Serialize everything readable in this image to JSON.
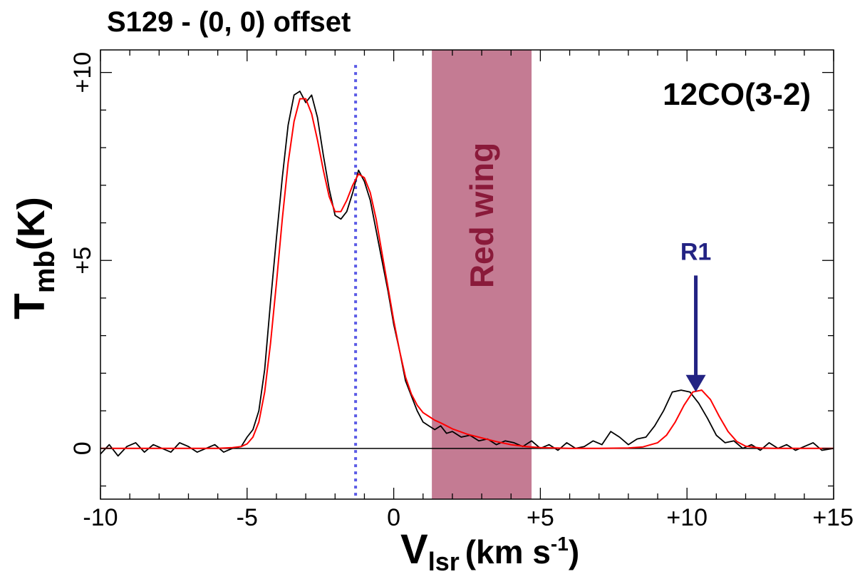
{
  "chart_data": {
    "type": "line",
    "title": "S129 - (0, 0) offset",
    "line_label": "12CO(3-2)",
    "xlabel": {
      "main": "V",
      "sub": "lsr",
      "unit_pre": "(km s",
      "unit_sup": "-1",
      "unit_post": ")"
    },
    "ylabel": {
      "main": "T",
      "sub": "mb",
      "unit": "(K)"
    },
    "xlim": [
      -10,
      15
    ],
    "ylim": [
      -1.35,
      10.6
    ],
    "x_ticks": [
      -10,
      -5,
      0,
      5,
      10,
      15
    ],
    "x_tick_labels": [
      "-10",
      "-5",
      "0",
      "+5",
      "+10",
      "+15"
    ],
    "y_ticks": [
      0,
      5,
      10
    ],
    "y_tick_labels": [
      "0",
      "+5",
      "+10"
    ],
    "zero_line": 0,
    "vertical_marker": {
      "x": -1.3,
      "style": "dotted",
      "color": "#5b5be6"
    },
    "band": {
      "x_range": [
        1.3,
        4.7
      ],
      "label": "Red wing",
      "color": "#c47b93",
      "label_color": "#8a1a3a"
    },
    "annotation": {
      "label": "R1",
      "x": 10.3,
      "y_tip": 1.5,
      "y_tail": 4.6,
      "color": "#232383"
    },
    "series": [
      {
        "kind": "observed",
        "color": "#000000",
        "x": [
          -10.0,
          -9.7,
          -9.4,
          -9.1,
          -8.8,
          -8.5,
          -8.2,
          -7.9,
          -7.6,
          -7.3,
          -7.0,
          -6.7,
          -6.4,
          -6.1,
          -5.8,
          -5.5,
          -5.2,
          -5.0,
          -4.8,
          -4.6,
          -4.4,
          -4.2,
          -4.0,
          -3.8,
          -3.6,
          -3.4,
          -3.2,
          -3.0,
          -2.8,
          -2.6,
          -2.4,
          -2.2,
          -2.0,
          -1.8,
          -1.6,
          -1.4,
          -1.2,
          -1.0,
          -0.8,
          -0.6,
          -0.4,
          -0.2,
          0.0,
          0.2,
          0.4,
          0.6,
          0.8,
          1.0,
          1.2,
          1.4,
          1.6,
          1.8,
          2.0,
          2.3,
          2.6,
          2.9,
          3.2,
          3.5,
          3.8,
          4.1,
          4.4,
          4.7,
          5.0,
          5.3,
          5.6,
          5.9,
          6.2,
          6.5,
          6.8,
          7.1,
          7.4,
          7.7,
          8.0,
          8.3,
          8.6,
          8.9,
          9.2,
          9.5,
          9.8,
          10.1,
          10.4,
          10.7,
          11.0,
          11.3,
          11.6,
          11.9,
          12.2,
          12.5,
          12.8,
          13.1,
          13.4,
          13.7,
          14.0,
          14.3,
          14.6,
          15.0
        ],
        "y": [
          -0.15,
          0.1,
          -0.2,
          0.05,
          0.15,
          -0.1,
          0.1,
          0.0,
          -0.1,
          0.15,
          0.05,
          -0.1,
          0.0,
          0.1,
          -0.1,
          0.0,
          0.05,
          0.3,
          0.5,
          1.0,
          2.1,
          3.9,
          5.6,
          7.2,
          8.6,
          9.4,
          9.5,
          9.2,
          9.4,
          8.8,
          7.8,
          6.9,
          6.2,
          6.1,
          6.3,
          6.8,
          7.4,
          7.1,
          6.6,
          5.8,
          5.0,
          4.2,
          3.3,
          2.6,
          1.8,
          1.4,
          1.0,
          0.7,
          0.6,
          0.5,
          0.6,
          0.4,
          0.45,
          0.3,
          0.35,
          0.2,
          0.25,
          0.1,
          0.2,
          0.15,
          0.05,
          0.2,
          0.0,
          0.1,
          -0.05,
          0.15,
          0.0,
          0.05,
          0.2,
          0.1,
          0.45,
          0.3,
          0.1,
          0.25,
          0.3,
          0.6,
          1.0,
          1.5,
          1.55,
          1.5,
          1.2,
          0.8,
          0.35,
          0.15,
          0.2,
          0.0,
          0.1,
          -0.05,
          0.15,
          0.0,
          0.1,
          -0.05,
          0.05,
          0.15,
          -0.05,
          0.0
        ]
      },
      {
        "kind": "gaussian-fit",
        "color": "#ff0000",
        "x": [
          -10.0,
          -9.5,
          -9.0,
          -8.5,
          -8.0,
          -7.5,
          -7.0,
          -6.5,
          -6.0,
          -5.5,
          -5.2,
          -5.0,
          -4.8,
          -4.6,
          -4.4,
          -4.2,
          -4.0,
          -3.8,
          -3.6,
          -3.4,
          -3.2,
          -3.0,
          -2.8,
          -2.6,
          -2.4,
          -2.2,
          -2.0,
          -1.8,
          -1.6,
          -1.4,
          -1.2,
          -1.0,
          -0.8,
          -0.6,
          -0.4,
          -0.2,
          0.0,
          0.2,
          0.4,
          0.6,
          0.8,
          1.0,
          1.2,
          1.4,
          1.6,
          1.8,
          2.0,
          2.5,
          3.0,
          3.5,
          4.0,
          4.5,
          5.0,
          5.5,
          6.0,
          7.0,
          8.0,
          8.5,
          9.0,
          9.3,
          9.6,
          9.9,
          10.2,
          10.5,
          10.8,
          11.1,
          11.4,
          11.7,
          12.0,
          12.5,
          13.0,
          14.0,
          15.0
        ],
        "y": [
          0,
          0,
          0,
          0,
          0,
          0,
          0,
          0,
          0,
          0.02,
          0.05,
          0.12,
          0.3,
          0.7,
          1.5,
          2.8,
          4.4,
          6.1,
          7.6,
          8.7,
          9.3,
          9.3,
          8.9,
          8.2,
          7.4,
          6.7,
          6.3,
          6.3,
          6.6,
          7.0,
          7.3,
          7.2,
          6.8,
          6.1,
          5.2,
          4.3,
          3.4,
          2.6,
          1.9,
          1.45,
          1.15,
          0.95,
          0.85,
          0.75,
          0.68,
          0.6,
          0.52,
          0.38,
          0.28,
          0.18,
          0.1,
          0.05,
          0.02,
          0.01,
          0,
          0,
          0.01,
          0.04,
          0.15,
          0.35,
          0.7,
          1.15,
          1.5,
          1.55,
          1.3,
          0.85,
          0.45,
          0.18,
          0.06,
          0.01,
          0,
          0,
          0
        ]
      }
    ]
  }
}
